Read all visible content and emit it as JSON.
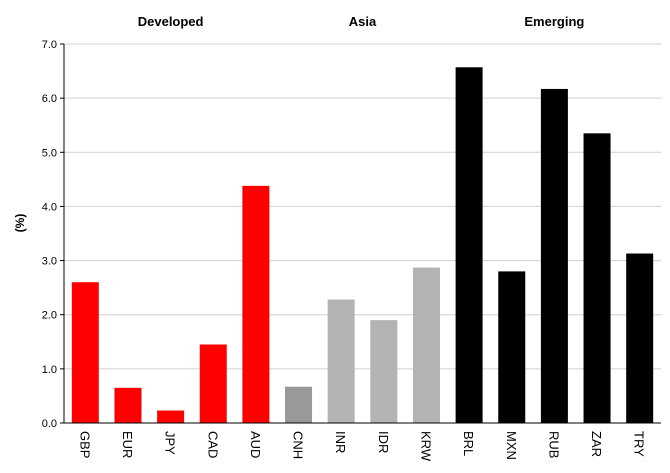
{
  "chart_data": {
    "type": "bar",
    "title": "",
    "xlabel": "",
    "ylabel": "(%)",
    "ylim": [
      0,
      7
    ],
    "yticks": [
      "0.0",
      "1.0",
      "2.0",
      "3.0",
      "4.0",
      "5.0",
      "6.0",
      "7.0"
    ],
    "grid": "horizontal",
    "categories": [
      "GBP",
      "EUR",
      "JPY",
      "CAD",
      "AUD",
      "CNH",
      "INR",
      "IDR",
      "KRW",
      "BRL",
      "MXN",
      "RUB",
      "ZAR",
      "TRY"
    ],
    "values": [
      2.6,
      0.65,
      0.23,
      1.45,
      4.38,
      0.67,
      2.28,
      1.9,
      2.87,
      6.57,
      2.8,
      6.17,
      5.35,
      3.13
    ],
    "groups": [
      {
        "name": "Developed",
        "categories": [
          "GBP",
          "EUR",
          "JPY",
          "CAD",
          "AUD"
        ],
        "color": "#ff0000"
      },
      {
        "name": "Asia",
        "categories": [
          "CNH",
          "INR",
          "IDR",
          "KRW"
        ],
        "color": "#b3b3b3",
        "first_color": "#999999"
      },
      {
        "name": "Emerging",
        "categories": [
          "BRL",
          "MXN",
          "RUB",
          "ZAR",
          "TRY"
        ],
        "color": "#000000"
      }
    ]
  }
}
